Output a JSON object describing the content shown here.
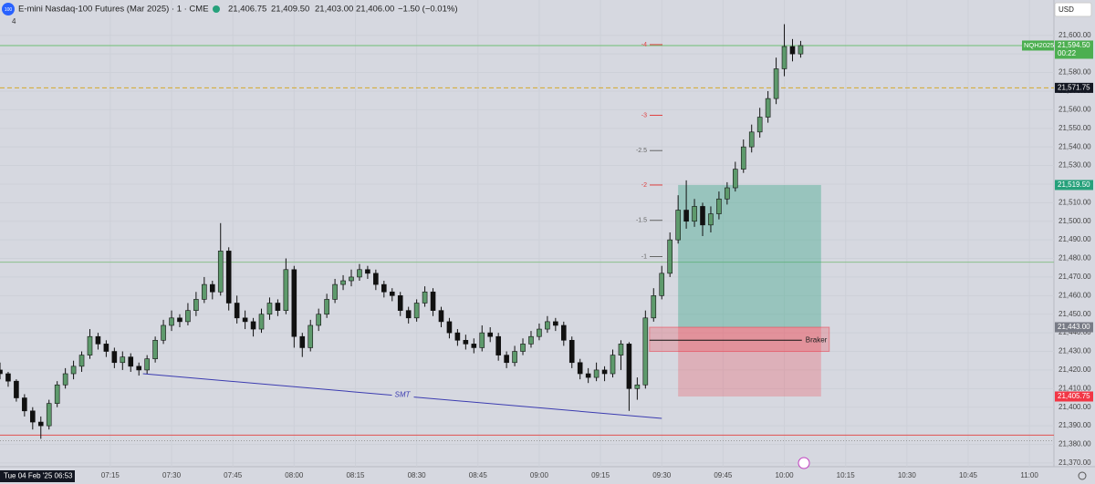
{
  "header": {
    "symbol": "E-mini Nasdaq-100 Futures (Mar 2025) · 1 · CME",
    "quotes": [
      "21,406.75",
      "21,409.50",
      "21,403.00",
      "21,406.00"
    ],
    "change": "−1.50 (−0.01%)",
    "badge": "4",
    "currency": "USD",
    "date_label": "Tue 04 Feb '25 06:53"
  },
  "chart_data": {
    "type": "candlestick",
    "x": [
      "06:48",
      "06:50",
      "06:52",
      "06:54",
      "06:56",
      "06:58",
      "07:00",
      "07:02",
      "07:04",
      "07:06",
      "07:08",
      "07:10",
      "07:12",
      "07:14",
      "07:16",
      "07:18",
      "07:20",
      "07:22",
      "07:24",
      "07:26",
      "07:28",
      "07:30",
      "07:32",
      "07:34",
      "07:36",
      "07:38",
      "07:40",
      "07:42",
      "07:44",
      "07:46",
      "07:48",
      "07:50",
      "07:52",
      "07:54",
      "07:56",
      "07:58",
      "08:00",
      "08:02",
      "08:04",
      "08:06",
      "08:08",
      "08:10",
      "08:12",
      "08:14",
      "08:16",
      "08:18",
      "08:20",
      "08:22",
      "08:24",
      "08:26",
      "08:28",
      "08:30",
      "08:32",
      "08:34",
      "08:36",
      "08:38",
      "08:40",
      "08:42",
      "08:44",
      "08:46",
      "08:48",
      "08:50",
      "08:52",
      "08:54",
      "08:56",
      "08:58",
      "09:00",
      "09:02",
      "09:04",
      "09:06",
      "09:08",
      "09:10",
      "09:12",
      "09:14",
      "09:16",
      "09:18",
      "09:20",
      "09:22",
      "09:24",
      "09:26",
      "09:28",
      "09:30",
      "09:32",
      "09:34",
      "09:36",
      "09:38",
      "09:40",
      "09:42",
      "09:44",
      "09:46",
      "09:48",
      "09:50",
      "09:52",
      "09:54",
      "09:56",
      "09:58",
      "10:00",
      "10:02",
      "10:04"
    ],
    "open": [
      21420,
      21418,
      21414,
      21405,
      21398,
      21392,
      21390,
      21402,
      21412,
      21418,
      21422,
      21428,
      21438,
      21434,
      21430,
      21424,
      21427,
      21422,
      21420,
      21426,
      21436,
      21444,
      21448,
      21446,
      21452,
      21458,
      21466,
      21462,
      21484,
      21456,
      21448,
      21446,
      21442,
      21450,
      21456,
      21452,
      21474,
      21438,
      21432,
      21444,
      21450,
      21458,
      21466,
      21468,
      21470,
      21474,
      21472,
      21466,
      21462,
      21460,
      21452,
      21448,
      21456,
      21462,
      21452,
      21446,
      21440,
      21436,
      21434,
      21432,
      21440,
      21438,
      21428,
      21424,
      21430,
      21434,
      21438,
      21442,
      21446,
      21444,
      21436,
      21424,
      21418,
      21416,
      21420,
      21418,
      21428,
      21434,
      21410,
      21412,
      21448,
      21460,
      21472,
      21490,
      21506,
      21500,
      21508,
      21498,
      21504,
      21512,
      21518,
      21528,
      21540,
      21548,
      21556,
      21566,
      21582,
      21594,
      21590
    ],
    "high": [
      21424,
      21419,
      21415,
      21407,
      21400,
      21395,
      21404,
      21414,
      21421,
      21425,
      21430,
      21442,
      21440,
      21436,
      21432,
      21430,
      21429,
      21424,
      21428,
      21438,
      21447,
      21452,
      21450,
      21456,
      21462,
      21470,
      21468,
      21499,
      21486,
      21460,
      21452,
      21448,
      21453,
      21459,
      21458,
      21480,
      21476,
      21440,
      21447,
      21453,
      21461,
      21469,
      21471,
      21474,
      21477,
      21476,
      21474,
      21468,
      21464,
      21462,
      21454,
      21458,
      21465,
      21464,
      21454,
      21448,
      21442,
      21439,
      21437,
      21444,
      21443,
      21440,
      21430,
      21433,
      21437,
      21441,
      21445,
      21449,
      21448,
      21446,
      21438,
      21426,
      21421,
      21424,
      21422,
      21431,
      21436,
      21435,
      21416,
      21452,
      21464,
      21476,
      21494,
      21514,
      21522,
      21512,
      21510,
      21508,
      21516,
      21521,
      21532,
      21544,
      21552,
      21561,
      21570,
      21588,
      21606,
      21598,
      21597
    ],
    "low": [
      21415,
      21411,
      21403,
      21395,
      21388,
      21383,
      21388,
      21400,
      21410,
      21415,
      21419,
      21426,
      21431,
      21427,
      21421,
      21420,
      21419,
      21417,
      21418,
      21424,
      21434,
      21441,
      21443,
      21444,
      21449,
      21456,
      21458,
      21460,
      21452,
      21445,
      21442,
      21438,
      21440,
      21447,
      21449,
      21450,
      21432,
      21427,
      21430,
      21441,
      21448,
      21456,
      21463,
      21465,
      21468,
      21469,
      21463,
      21459,
      21457,
      21449,
      21445,
      21446,
      21454,
      21449,
      21443,
      21437,
      21433,
      21431,
      21429,
      21430,
      21435,
      21425,
      21421,
      21422,
      21428,
      21432,
      21436,
      21440,
      21441,
      21433,
      21421,
      21415,
      21413,
      21414,
      21414,
      21416,
      21420,
      21398,
      21404,
      21410,
      21446,
      21458,
      21470,
      21488,
      21496,
      21497,
      21492,
      21494,
      21501,
      21509,
      21516,
      21526,
      21537,
      21545,
      21553,
      21563,
      21578,
      21586,
      21588
    ],
    "close": [
      21418,
      21414,
      21405,
      21398,
      21392,
      21390,
      21402,
      21412,
      21418,
      21422,
      21428,
      21438,
      21434,
      21430,
      21424,
      21427,
      21422,
      21420,
      21426,
      21436,
      21444,
      21448,
      21446,
      21452,
      21458,
      21466,
      21462,
      21484,
      21456,
      21448,
      21446,
      21442,
      21450,
      21456,
      21452,
      21474,
      21438,
      21432,
      21444,
      21450,
      21458,
      21466,
      21468,
      21470,
      21474,
      21472,
      21466,
      21462,
      21460,
      21452,
      21448,
      21456,
      21462,
      21452,
      21446,
      21440,
      21436,
      21434,
      21432,
      21440,
      21438,
      21428,
      21424,
      21430,
      21434,
      21438,
      21442,
      21446,
      21444,
      21436,
      21424,
      21418,
      21416,
      21420,
      21418,
      21428,
      21434,
      21410,
      21412,
      21448,
      21460,
      21472,
      21490,
      21506,
      21500,
      21508,
      21498,
      21504,
      21512,
      21518,
      21528,
      21540,
      21548,
      21556,
      21566,
      21582,
      21594,
      21590,
      21594.5
    ],
    "up_color": "#5e9a6c",
    "down_color": "#111111",
    "xlim": [
      "06:48",
      "11:06"
    ],
    "xticks": [
      "07:15",
      "07:30",
      "07:45",
      "08:00",
      "08:15",
      "08:30",
      "08:45",
      "09:00",
      "09:15",
      "09:30",
      "09:45",
      "10:00",
      "10:15",
      "10:30",
      "10:45",
      "11:00"
    ],
    "ylim": [
      21368,
      21619
    ],
    "yticks": [
      {
        "value": 21370,
        "label": "21,370.00"
      },
      {
        "value": 21380,
        "label": "21,380.00"
      },
      {
        "value": 21390,
        "label": "21,390.00"
      },
      {
        "value": 21400,
        "label": "21,400.00"
      },
      {
        "value": 21410,
        "label": "21,410.00"
      },
      {
        "value": 21420,
        "label": "21,420.00"
      },
      {
        "value": 21430,
        "label": "21,430.00"
      },
      {
        "value": 21440,
        "label": "21,440.00"
      },
      {
        "value": 21450,
        "label": "21,450.00"
      },
      {
        "value": 21460,
        "label": "21,460.00"
      },
      {
        "value": 21470,
        "label": "21,470.00"
      },
      {
        "value": 21480,
        "label": "21,480.00"
      },
      {
        "value": 21490,
        "label": "21,490.00"
      },
      {
        "value": 21500,
        "label": "21,500.00"
      },
      {
        "value": 21510,
        "label": "21,510.00"
      },
      {
        "value": 21520,
        "label": "21,520.00"
      },
      {
        "value": 21530,
        "label": "21,530.00"
      },
      {
        "value": 21540,
        "label": "21,540.00"
      },
      {
        "value": 21550,
        "label": "21,550.00"
      },
      {
        "value": 21560,
        "label": "21,560.00"
      },
      {
        "value": 21570,
        "label": "21,570.00"
      },
      {
        "value": 21580,
        "label": "21,580.00"
      },
      {
        "value": 21590,
        "label": "21,590.00"
      },
      {
        "value": 21600,
        "label": "21,600.00"
      }
    ],
    "grid": true,
    "lines": [
      {
        "value": 21594.5,
        "color": "#6fbf73",
        "style": "solid"
      },
      {
        "value": 21571.75,
        "color": "#d4a82a",
        "style": "dashed"
      },
      {
        "value": 21478,
        "color": "#8cc08c",
        "style": "solid"
      },
      {
        "value": 21385,
        "color": "#e05050",
        "style": "solid"
      },
      {
        "value": 21382,
        "color": "#9a9a9a",
        "style": "dotted"
      }
    ],
    "fib_levels": [
      {
        "label": "-4",
        "value": 21595,
        "color": "#e04040"
      },
      {
        "label": "-3",
        "value": 21557,
        "color": "#e04040"
      },
      {
        "label": "-2.5",
        "value": 21538,
        "color": "#666666"
      },
      {
        "label": "-2",
        "value": 21519.5,
        "color": "#e04040"
      },
      {
        "label": "-1.5",
        "value": 21500.5,
        "color": "#666666"
      },
      {
        "label": "-1",
        "value": 21481,
        "color": "#666666"
      }
    ],
    "position": {
      "start": "09:34",
      "end": "10:09",
      "target": 21519.5,
      "entry": 21443,
      "stop": 21405.75
    },
    "braker": {
      "label": "Braker",
      "start": "09:27",
      "end": "10:11",
      "top": 21443,
      "bottom": 21430,
      "line": 21436
    },
    "smt": {
      "label": "SMT",
      "from_time": "07:23",
      "from_value": 21418,
      "to_time": "09:30",
      "to_value": 21394
    },
    "price_tags": [
      {
        "value": 21594.5,
        "label": "21,594.50",
        "color": "#4caf50",
        "symbol": "NQH2025",
        "countdown": "00:22"
      },
      {
        "value": 21571.75,
        "label": "21,571.75",
        "color": "#131722"
      },
      {
        "value": 21519.5,
        "label": "21,519.50",
        "color": "#26a17b"
      },
      {
        "value": 21443,
        "label": "21,443.00",
        "color": "#787b86"
      },
      {
        "value": 21405.75,
        "label": "21,405.75",
        "color": "#f23645"
      }
    ]
  }
}
